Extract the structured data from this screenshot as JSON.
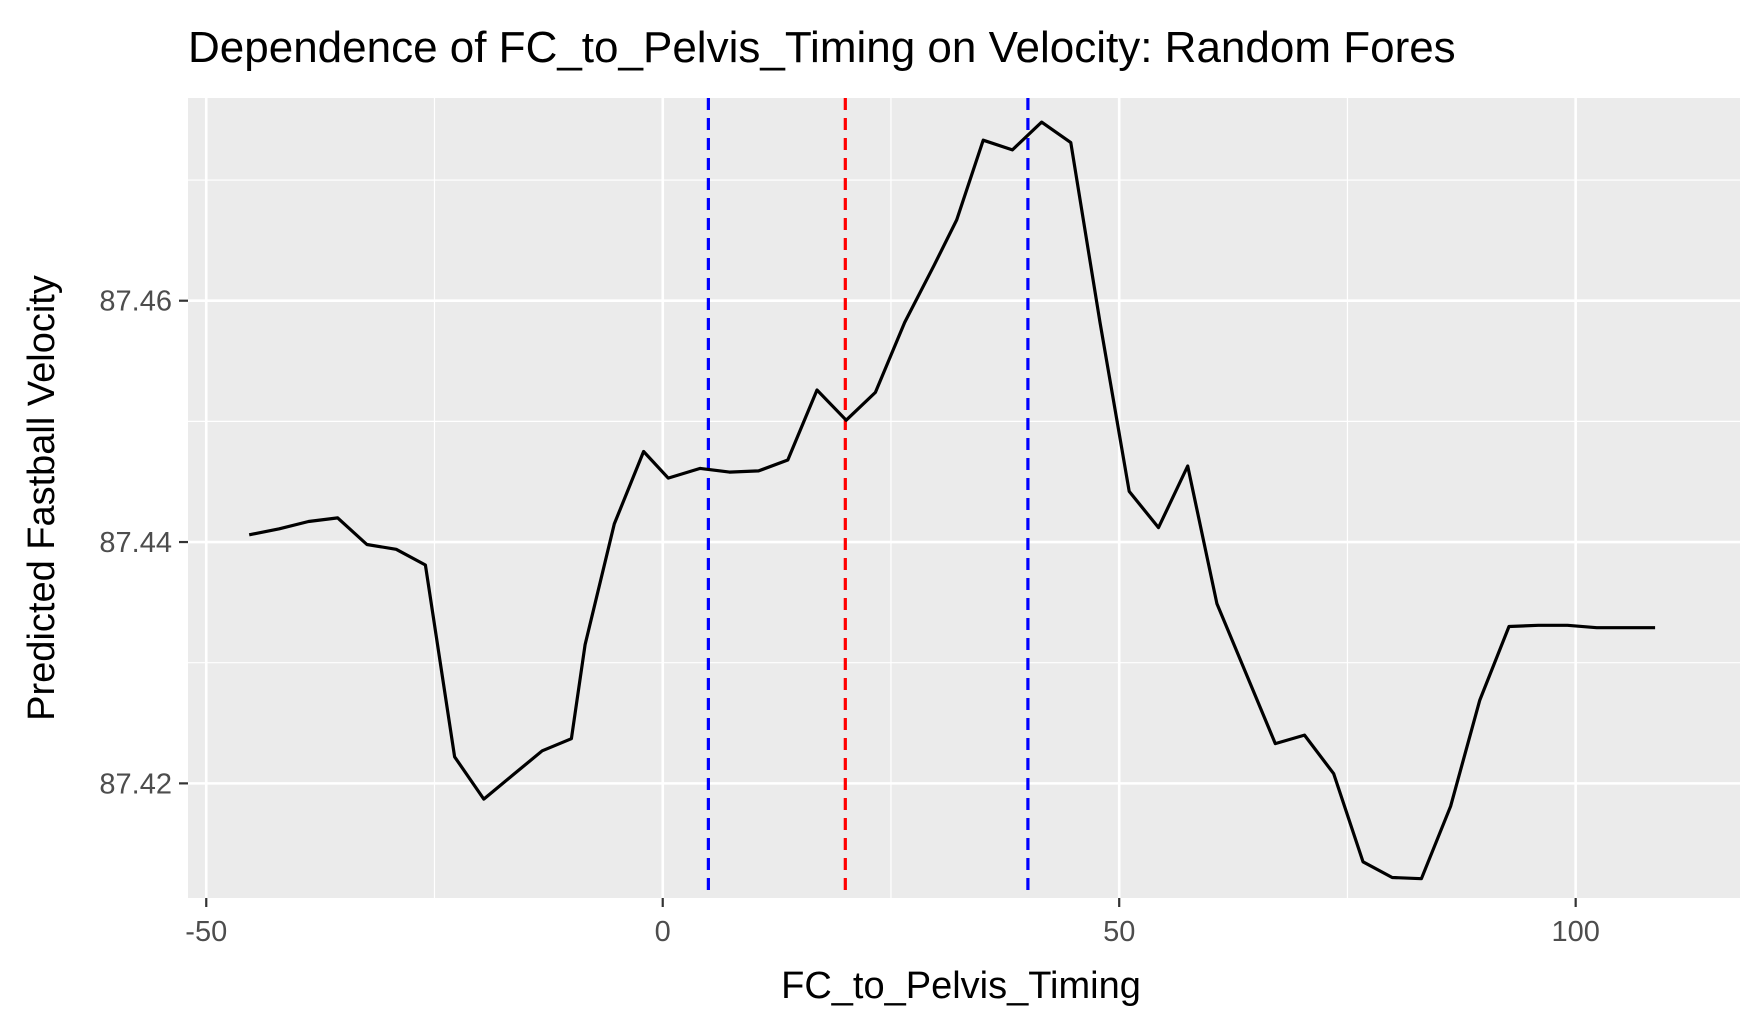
{
  "chart_data": {
    "type": "line",
    "title": "Dependence of FC_to_Pelvis_Timing on Velocity: Random Fores",
    "xlabel": "FC_to_Pelvis_Timing",
    "ylabel": "Predicted Fastball Velocity",
    "xlim": [
      -52,
      118
    ],
    "ylim": [
      87.4105,
      87.4768
    ],
    "x_ticks": [
      -50,
      0,
      50,
      100
    ],
    "x_tick_labels": [
      "-50",
      "0",
      "50",
      "100"
    ],
    "y_ticks": [
      87.42,
      87.44,
      87.46
    ],
    "y_tick_labels": [
      "87.42",
      "87.44",
      "87.46"
    ],
    "grid": true,
    "background": "#ebebeb",
    "gridline_color": "#ffffff",
    "series": [
      {
        "color": "#000000",
        "x": [
          -45.3,
          -42.0,
          -38.8,
          -35.6,
          -32.4,
          -29.2,
          -26.0,
          -22.8,
          -19.6,
          -16.4,
          -13.2,
          -10.0,
          -8.5,
          -5.3,
          -2.1,
          0.6,
          4.1,
          7.3,
          10.5,
          13.7,
          16.9,
          20.1,
          23.3,
          26.5,
          29.7,
          32.2,
          35.1,
          38.3,
          41.5,
          44.7,
          47.9,
          51.1,
          54.3,
          57.5,
          60.7,
          63.9,
          67.1,
          70.3,
          73.5,
          76.7,
          79.9,
          83.1,
          86.3,
          89.5,
          92.7,
          95.9,
          99.1,
          102.3,
          105.5,
          108.7
        ],
        "y": [
          87.4406,
          87.4411,
          87.4417,
          87.442,
          87.4398,
          87.4394,
          87.4381,
          87.4222,
          87.4187,
          87.4207,
          87.4227,
          87.4237,
          87.4315,
          87.4415,
          87.4475,
          87.4453,
          87.4461,
          87.4458,
          87.4459,
          87.4468,
          87.4526,
          87.4501,
          87.4524,
          87.4582,
          87.4629,
          87.4667,
          87.4733,
          87.4725,
          87.4748,
          87.4731,
          87.4582,
          87.4442,
          87.4412,
          87.4463,
          87.4349,
          87.4291,
          87.4233,
          87.424,
          87.4208,
          87.4135,
          87.4122,
          87.4121,
          87.4181,
          87.4269,
          87.433,
          87.4331,
          87.4331,
          87.4329,
          87.4329,
          87.4329
        ]
      }
    ],
    "reference_lines": [
      {
        "x": 5,
        "color": "#0000ff",
        "style": "dashed"
      },
      {
        "x": 20,
        "color": "#ff0000",
        "style": "dashed"
      },
      {
        "x": 40,
        "color": "#0000ff",
        "style": "dashed"
      }
    ]
  }
}
